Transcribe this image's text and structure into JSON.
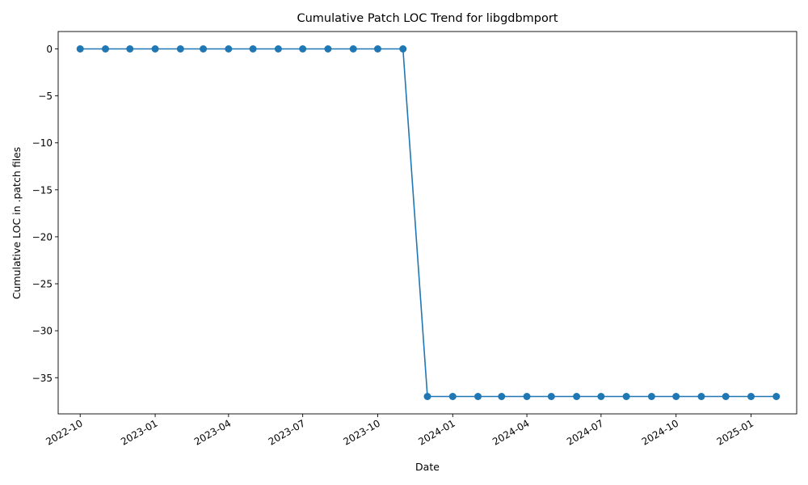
{
  "chart_data": {
    "type": "line",
    "title": "Cumulative Patch LOC Trend for libgdbmport",
    "xlabel": "Date",
    "ylabel": "Cumulative LOC in .patch files",
    "xlim": [
      "2022-09-04",
      "2025-02-26"
    ],
    "ylim": [
      -38.85,
      1.85
    ],
    "x_ticks": [
      "2022-10",
      "2023-01",
      "2023-04",
      "2023-07",
      "2023-10",
      "2024-01",
      "2024-04",
      "2024-07",
      "2024-10",
      "2025-01"
    ],
    "y_ticks": [
      0,
      -5,
      -10,
      -15,
      -20,
      -25,
      -30,
      -35
    ],
    "y_tick_labels": [
      "0",
      "−5",
      "−10",
      "−15",
      "−20",
      "−25",
      "−30",
      "−35"
    ],
    "grid": false,
    "marker": "circle",
    "series": [
      {
        "color": "#1f77b4",
        "x": [
          "2022-10-01",
          "2022-11-01",
          "2022-12-01",
          "2023-01-01",
          "2023-02-01",
          "2023-03-01",
          "2023-04-01",
          "2023-05-01",
          "2023-06-01",
          "2023-07-01",
          "2023-08-01",
          "2023-09-01",
          "2023-10-01",
          "2023-11-01",
          "2023-12-01",
          "2024-01-01",
          "2024-02-01",
          "2024-03-01",
          "2024-04-01",
          "2024-05-01",
          "2024-06-01",
          "2024-07-01",
          "2024-08-01",
          "2024-09-01",
          "2024-10-01",
          "2024-11-01",
          "2024-12-01",
          "2025-01-01",
          "2025-02-01"
        ],
        "y": [
          0,
          0,
          0,
          0,
          0,
          0,
          0,
          0,
          0,
          0,
          0,
          0,
          0,
          0,
          -37,
          -37,
          -37,
          -37,
          -37,
          -37,
          -37,
          -37,
          -37,
          -37,
          -37,
          -37,
          -37,
          -37,
          -37
        ]
      }
    ]
  }
}
